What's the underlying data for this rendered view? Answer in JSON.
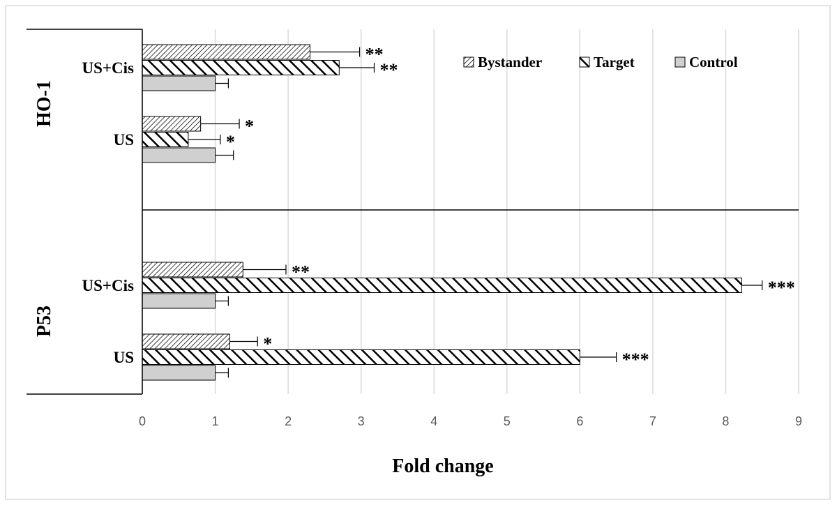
{
  "chart_data": {
    "type": "bar",
    "orientation": "horizontal",
    "xlabel": "Fold change",
    "xlim": [
      0,
      9
    ],
    "xticks": [
      0,
      1,
      2,
      3,
      4,
      5,
      6,
      7,
      8,
      9
    ],
    "grid": true,
    "legend": "top-right",
    "series": [
      {
        "name": "Bystander",
        "pattern": "hatch-fine",
        "color": "#000000"
      },
      {
        "name": "Target",
        "pattern": "hatch-bold",
        "color": "#000000"
      },
      {
        "name": "Control",
        "pattern": "solid",
        "color": "#d0d0d0"
      }
    ],
    "panels": [
      {
        "label": "HO-1",
        "categories": [
          "US+Cis",
          "US"
        ],
        "series": [
          {
            "values": [
              2.3,
              0.8
            ],
            "errors": [
              0.68,
              0.53
            ],
            "annotations": [
              "**",
              "*"
            ]
          },
          {
            "values": [
              2.7,
              0.63
            ],
            "errors": [
              0.48,
              0.44
            ],
            "annotations": [
              "**",
              "*"
            ]
          },
          {
            "values": [
              1.0,
              1.0
            ],
            "errors": [
              0.18,
              0.25
            ]
          }
        ]
      },
      {
        "label": "P53",
        "categories": [
          "US+Cis",
          "US"
        ],
        "series": [
          {
            "values": [
              1.38,
              1.2
            ],
            "errors": [
              0.59,
              0.38
            ],
            "annotations": [
              "**",
              "*"
            ]
          },
          {
            "values": [
              8.22,
              6.0
            ],
            "errors": [
              0.28,
              0.5
            ],
            "annotations": [
              "***",
              "***"
            ]
          },
          {
            "values": [
              1.0,
              1.0
            ],
            "errors": [
              0.18,
              0.18
            ]
          }
        ]
      }
    ]
  }
}
